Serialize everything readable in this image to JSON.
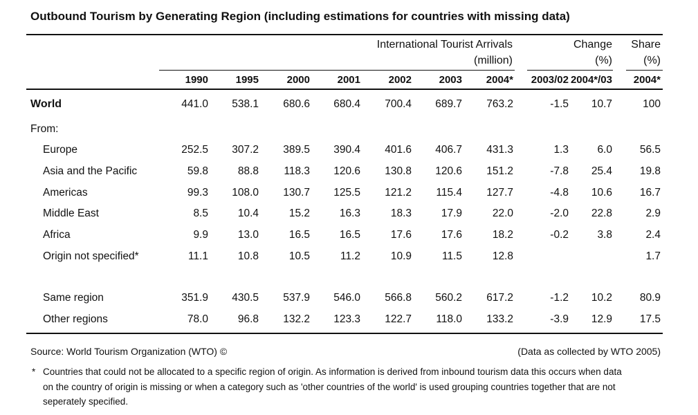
{
  "title": "Outbound Tourism by Generating Region (including estimations for countries with missing data)",
  "headers": {
    "arrivals_line1": "International Tourist Arrivals",
    "arrivals_line2": "(million)",
    "change_line1": "Change",
    "change_line2": "(%)",
    "share_line1": "Share",
    "share_line2": "(%)",
    "years": [
      "1990",
      "1995",
      "2000",
      "2001",
      "2002",
      "2003",
      "2004*"
    ],
    "change_cols": [
      "2003/02",
      "2004*/03"
    ],
    "share_col": "2004*"
  },
  "world": {
    "label": "World",
    "values": [
      "441.0",
      "538.1",
      "680.6",
      "680.4",
      "700.4",
      "689.7",
      "763.2"
    ],
    "change": [
      "-1.5",
      "10.7"
    ],
    "share": "100"
  },
  "from_label": "From:",
  "regions": [
    {
      "label": "Europe",
      "values": [
        "252.5",
        "307.2",
        "389.5",
        "390.4",
        "401.6",
        "406.7",
        "431.3"
      ],
      "change": [
        "1.3",
        "6.0"
      ],
      "share": "56.5"
    },
    {
      "label": "Asia and the Pacific",
      "values": [
        "59.8",
        "88.8",
        "118.3",
        "120.6",
        "130.8",
        "120.6",
        "151.2"
      ],
      "change": [
        "-7.8",
        "25.4"
      ],
      "share": "19.8"
    },
    {
      "label": "Americas",
      "values": [
        "99.3",
        "108.0",
        "130.7",
        "125.5",
        "121.2",
        "115.4",
        "127.7"
      ],
      "change": [
        "-4.8",
        "10.6"
      ],
      "share": "16.7"
    },
    {
      "label": "Middle East",
      "values": [
        "8.5",
        "10.4",
        "15.2",
        "16.3",
        "18.3",
        "17.9",
        "22.0"
      ],
      "change": [
        "-2.0",
        "22.8"
      ],
      "share": "2.9"
    },
    {
      "label": "Africa",
      "values": [
        "9.9",
        "13.0",
        "16.5",
        "16.5",
        "17.6",
        "17.6",
        "18.2"
      ],
      "change": [
        "-0.2",
        "3.8"
      ],
      "share": "2.4"
    },
    {
      "label": "Origin not specified*",
      "values": [
        "11.1",
        "10.8",
        "10.5",
        "11.2",
        "10.9",
        "11.5",
        "12.8"
      ],
      "change": [
        "",
        ""
      ],
      "share": "1.7"
    }
  ],
  "groups": [
    {
      "label": "Same region",
      "values": [
        "351.9",
        "430.5",
        "537.9",
        "546.0",
        "566.8",
        "560.2",
        "617.2"
      ],
      "change": [
        "-1.2",
        "10.2"
      ],
      "share": "80.9"
    },
    {
      "label": "Other regions",
      "values": [
        "78.0",
        "96.8",
        "132.2",
        "123.3",
        "122.7",
        "118.0",
        "133.2"
      ],
      "change": [
        "-3.9",
        "12.9"
      ],
      "share": "17.5"
    }
  ],
  "source": "Source: World Tourism Organization (WTO) ©",
  "collected": "(Data as collected by WTO 2005)",
  "footnote_mark": "*",
  "footnote": "Countries that could not be allocated to a specific region of origin. As information is derived from inbound tourism data this occurs when data on the country of origin is missing or when a category such as 'other countries of the world' is used grouping countries together that are not seperately specified."
}
